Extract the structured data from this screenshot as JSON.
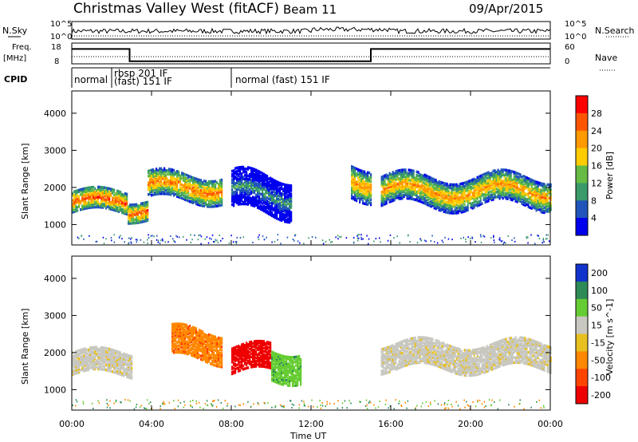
{
  "header": {
    "title": "Christmas Valley West (fitACF)",
    "beam": "Beam 11",
    "date": "09/Apr/2015"
  },
  "top_panels": {
    "nsky_label": "N.Sky",
    "nsearch_label": "N.Search",
    "noise_ticks_left": [
      "10^5",
      "10^0"
    ],
    "noise_ticks_right": [
      "10^5",
      "10^0"
    ],
    "freq_label_1": "Freq.",
    "freq_label_2": "[MHz]",
    "freq_ticks": [
      "18",
      "8"
    ],
    "nave_label": "Nave",
    "nave_ticks": [
      "60",
      "0"
    ],
    "cpid_label": "CPID",
    "cpid_segments": [
      {
        "text": "normal",
        "start_h": 0.0
      },
      {
        "text": "rbsp 201 IF",
        "start_h": 2.0
      },
      {
        "text": "(fast) 151 IF",
        "start_h": 2.0
      },
      {
        "text": "normal (fast) 151 IF",
        "start_h": 8.0
      }
    ]
  },
  "power_panel": {
    "ylabel": "Slant Range [km]",
    "yticks": [
      "4000",
      "3000",
      "2000",
      "1000"
    ],
    "colorbar_label": "Power [dB]",
    "colorbar_ticks": [
      "28",
      "24",
      "20",
      "16",
      "12",
      "8",
      "4"
    ],
    "colors": [
      "#ff0000",
      "#ff5500",
      "#ff9900",
      "#ffcc00",
      "#66bb44",
      "#3a9a6a",
      "#2255bb",
      "#0000ee"
    ]
  },
  "velocity_panel": {
    "ylabel": "Slant Range [km]",
    "yticks": [
      "4000",
      "3000",
      "2000",
      "1000"
    ],
    "colorbar_label": "Velocity [m s^-1]",
    "colorbar_ticks": [
      "200",
      "100",
      "50",
      "15",
      "-15",
      "-50",
      "-100",
      "-200"
    ],
    "colors": [
      "#1133cc",
      "#2e8b57",
      "#66cc33",
      "#c8c8c0",
      "#e8c020",
      "#ff8800",
      "#ff4400",
      "#ee0000"
    ]
  },
  "xaxis": {
    "label": "Time UT",
    "ticks": [
      "00:00",
      "04:00",
      "08:00",
      "12:00",
      "16:00",
      "20:00",
      "00:00"
    ]
  },
  "chart_data": {
    "type": "heatmap",
    "x_unit": "hours UT",
    "x_range": [
      0,
      24
    ],
    "y_range_km": [
      450,
      4600
    ],
    "frequency_MHz": [
      {
        "from_h": 0.0,
        "to_h": 2.9,
        "value": 16
      },
      {
        "from_h": 2.9,
        "to_h": 15.0,
        "value": 9
      },
      {
        "from_h": 15.0,
        "to_h": 24.0,
        "value": 16
      }
    ],
    "power_bands": [
      {
        "from_h": 0.0,
        "to_h": 2.8,
        "center_km": 1600,
        "width_km": 550,
        "peak_dB": 28
      },
      {
        "from_h": 2.8,
        "to_h": 3.8,
        "center_km": 1400,
        "width_km": 500,
        "peak_dB": 28
      },
      {
        "from_h": 3.8,
        "to_h": 7.5,
        "center_km": 2000,
        "width_km": 700,
        "peak_dB": 26
      },
      {
        "from_h": 8.0,
        "to_h": 11.0,
        "center_km": 1800,
        "width_km": 1000,
        "peak_dB": 12
      },
      {
        "from_h": 14.0,
        "to_h": 15.0,
        "center_km": 2200,
        "width_km": 900,
        "peak_dB": 24
      },
      {
        "from_h": 15.5,
        "to_h": 24.0,
        "center_km": 1900,
        "width_km": 800,
        "peak_dB": 24
      }
    ],
    "velocity_bands": [
      {
        "from_h": 0.0,
        "to_h": 3.0,
        "center_km": 1700,
        "width_km": 600,
        "velocity": 0
      },
      {
        "from_h": 5.0,
        "to_h": 7.5,
        "center_km": 2200,
        "width_km": 800,
        "velocity": -60
      },
      {
        "from_h": 8.0,
        "to_h": 10.0,
        "center_km": 1800,
        "width_km": 700,
        "velocity": -200
      },
      {
        "from_h": 10.0,
        "to_h": 11.5,
        "center_km": 1700,
        "width_km": 800,
        "velocity": 60
      },
      {
        "from_h": 15.5,
        "to_h": 24.0,
        "center_km": 1900,
        "width_km": 700,
        "velocity": 0
      }
    ]
  }
}
